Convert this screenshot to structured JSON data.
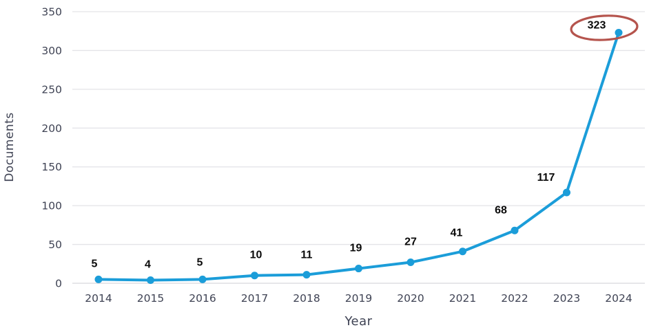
{
  "chart_data": {
    "type": "line",
    "title": "",
    "xlabel": "Year",
    "ylabel": "Documents",
    "categories": [
      "2014",
      "2015",
      "2016",
      "2017",
      "2018",
      "2019",
      "2020",
      "2021",
      "2022",
      "2023",
      "2024"
    ],
    "values": [
      5,
      4,
      5,
      10,
      11,
      19,
      27,
      41,
      68,
      117,
      323
    ],
    "data_labels": [
      "5",
      "4",
      "5",
      "10",
      "11",
      "19",
      "27",
      "41",
      "68",
      "117",
      "323"
    ],
    "ylim": [
      0,
      350
    ],
    "yticks": [
      0,
      50,
      100,
      150,
      200,
      250,
      300,
      350
    ],
    "grid": true,
    "legend_position": "none",
    "line_color": "#1b9dd9",
    "marker": "circle",
    "marker_color": "#1b9dd9",
    "data_label_color": "#0a0a0a",
    "tick_label_color": "#3f4354",
    "grid_color": "#e3e3e7",
    "baseline_color": "#d7d7dc",
    "background_color": "#ffffff",
    "annotation": {
      "type": "ellipse-highlight",
      "target_category": "2024",
      "target_value": 323,
      "color": "#b5544d"
    }
  }
}
